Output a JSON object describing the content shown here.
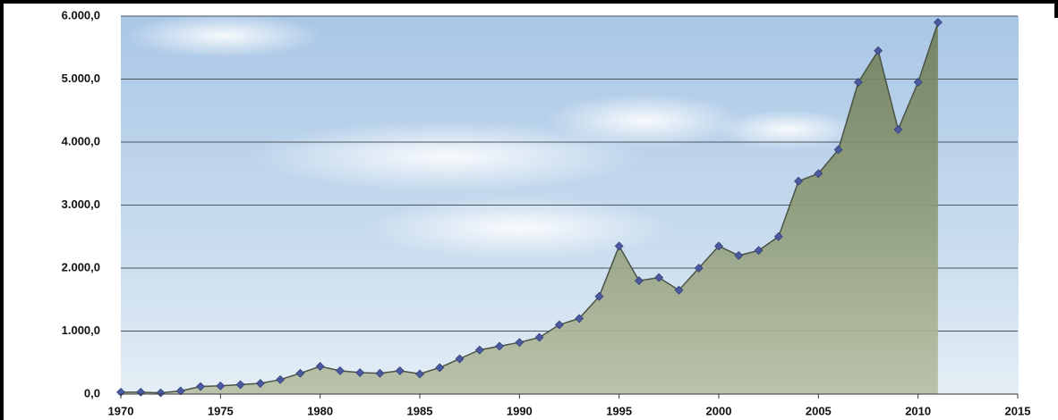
{
  "chart_data": {
    "type": "area",
    "x": [
      1970,
      1971,
      1972,
      1973,
      1974,
      1975,
      1976,
      1977,
      1978,
      1979,
      1980,
      1981,
      1982,
      1983,
      1984,
      1985,
      1986,
      1987,
      1988,
      1989,
      1990,
      1991,
      1992,
      1993,
      1994,
      1995,
      1996,
      1997,
      1998,
      1999,
      2000,
      2001,
      2002,
      2003,
      2004,
      2005,
      2006,
      2007,
      2008,
      2009,
      2010,
      2011
    ],
    "values": [
      30,
      30,
      20,
      50,
      120,
      130,
      150,
      170,
      230,
      330,
      440,
      370,
      340,
      330,
      370,
      320,
      420,
      560,
      700,
      760,
      820,
      900,
      1100,
      1200,
      1550,
      2350,
      1800,
      1850,
      1650,
      2000,
      2350,
      2200,
      2280,
      2500,
      3380,
      3500,
      3880,
      4950,
      5450,
      4200,
      4950,
      5900
    ],
    "color": "#4a5a9e",
    "xlim": [
      1970,
      2015
    ],
    "xticks": [
      1970,
      1975,
      1980,
      1985,
      1990,
      1995,
      2000,
      2005,
      2010,
      2015
    ],
    "ylim": [
      0,
      6000
    ],
    "yticks": [
      {
        "value": 0,
        "label": "0,0"
      },
      {
        "value": 1000,
        "label": "1.000,0"
      },
      {
        "value": 2000,
        "label": "2.000,0"
      },
      {
        "value": 3000,
        "label": "3.000,0"
      },
      {
        "value": 4000,
        "label": "4.000,0"
      },
      {
        "value": 5000,
        "label": "5.000,0"
      },
      {
        "value": 6000,
        "label": "6.000,0"
      }
    ],
    "grid": true
  }
}
